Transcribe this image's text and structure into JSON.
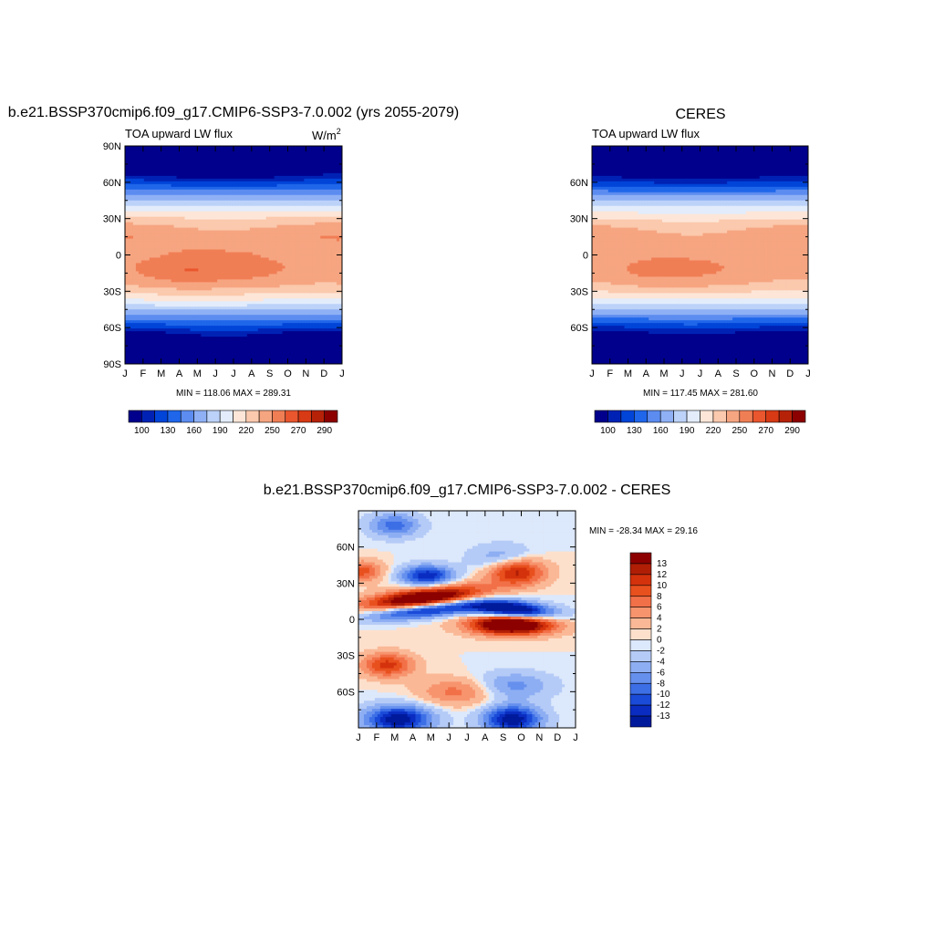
{
  "panels": [
    {
      "id": "model",
      "title": "b.e21.BSSP370cmip6.f09_g17.CMIP6-SSP3-7.0.002 (yrs 2055-2079)",
      "left_label": "TOA upward LW flux",
      "units_base": "W/m",
      "units_exp": "2",
      "stats": "MIN = 118.06 MAX = 289.31"
    },
    {
      "id": "obs",
      "title": "CERES",
      "left_label": "TOA upward LW flux",
      "units_base": "",
      "units_exp": "",
      "stats": "MIN = 117.45 MAX = 281.60"
    },
    {
      "id": "diff",
      "title": "b.e21.BSSP370cmip6.f09_g17.CMIP6-SSP3-7.0.002 - CERES",
      "left_label": "",
      "stats": "MIN = -28.34 MAX =  29.16"
    }
  ],
  "chart_data": [
    {
      "type": "heatmap",
      "title": "b.e21.BSSP370cmip6.f09_g17.CMIP6-SSP3-7.0.002 (yrs 2055-2079)",
      "xlabel": "",
      "ylabel": "",
      "x_tick_labels": [
        "J",
        "F",
        "M",
        "A",
        "M",
        "J",
        "J",
        "A",
        "S",
        "O",
        "N",
        "D",
        "J"
      ],
      "y_tick_labels": [
        "90N",
        "60N",
        "30N",
        "0",
        "30S",
        "60S",
        "90S"
      ],
      "y_ticks_lat": [
        90,
        60,
        30,
        0,
        -30,
        -60,
        -90
      ],
      "ylim": [
        -90,
        90
      ],
      "min": 118.06,
      "max": 289.31,
      "colorbar_labels": [
        "100",
        "130",
        "160",
        "190",
        "220",
        "250",
        "270",
        "290"
      ],
      "colors": [
        "#00008c",
        "#0022b4",
        "#0044d8",
        "#1f66ea",
        "#5c8cf0",
        "#8fb0f5",
        "#bcd2f8",
        "#e2ecfb",
        "#fde6d8",
        "#fbc9ad",
        "#f6a581",
        "#f07e55",
        "#ea562e",
        "#d73a14",
        "#b62208",
        "#8c0000"
      ],
      "levels": [
        100,
        115,
        130,
        145,
        160,
        175,
        190,
        205,
        220,
        235,
        250,
        260,
        270,
        280,
        290
      ]
    },
    {
      "type": "heatmap",
      "title": "CERES",
      "x_tick_labels": [
        "J",
        "F",
        "M",
        "A",
        "M",
        "J",
        "J",
        "A",
        "S",
        "O",
        "N",
        "D",
        "J"
      ],
      "y_tick_labels": [
        "60N",
        "30N",
        "0",
        "30S",
        "60S"
      ],
      "y_ticks_lat": [
        60,
        30,
        0,
        -30,
        -60
      ],
      "ylim": [
        -90,
        90
      ],
      "min": 117.45,
      "max": 281.6,
      "colorbar_labels": [
        "100",
        "130",
        "160",
        "190",
        "220",
        "250",
        "270",
        "290"
      ]
    },
    {
      "type": "heatmap",
      "title": "b.e21.BSSP370cmip6.f09_g17.CMIP6-SSP3-7.0.002 - CERES",
      "x_tick_labels": [
        "J",
        "F",
        "M",
        "A",
        "M",
        "J",
        "J",
        "A",
        "S",
        "O",
        "N",
        "D",
        "J"
      ],
      "y_tick_labels": [
        "60N",
        "30N",
        "0",
        "30S",
        "60S"
      ],
      "y_ticks_lat": [
        60,
        30,
        0,
        -30,
        -60
      ],
      "ylim": [
        -90,
        90
      ],
      "min": -28.34,
      "max": 29.16,
      "colorbar_labels": [
        "13",
        "12",
        "10",
        "8",
        "6",
        "4",
        "2",
        "0",
        "-2",
        "-4",
        "-6",
        "-8",
        "-10",
        "-12",
        "-13"
      ],
      "colors": [
        "#8c0000",
        "#b01e06",
        "#d4320c",
        "#e8501e",
        "#f27048",
        "#f7946e",
        "#fab896",
        "#fde0cc",
        "#dce8fb",
        "#b5cbf7",
        "#8eaef3",
        "#6690ee",
        "#3c6ee6",
        "#1a4ad8",
        "#0a2cc0",
        "#001a9c"
      ]
    }
  ]
}
